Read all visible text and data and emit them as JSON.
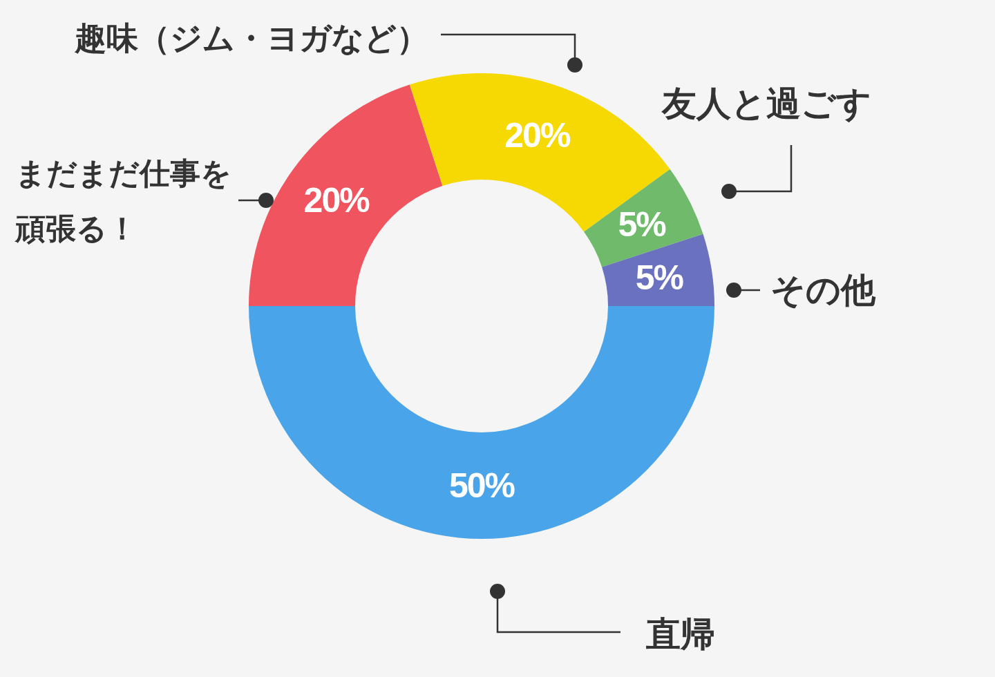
{
  "chart_data": {
    "type": "donut",
    "categories": [
      "直帰",
      "まだまだ仕事を頑張る！",
      "趣味（ジム・ヨガなど）",
      "友人と過ごす",
      "その他"
    ],
    "values": [
      50,
      20,
      20,
      5,
      5
    ],
    "colors": [
      "#4aa4e9",
      "#f0555f",
      "#f6d900",
      "#6fbb6b",
      "#6a72c0"
    ],
    "value_labels": [
      "50%",
      "20%",
      "20%",
      "5%",
      "5%"
    ]
  }
}
